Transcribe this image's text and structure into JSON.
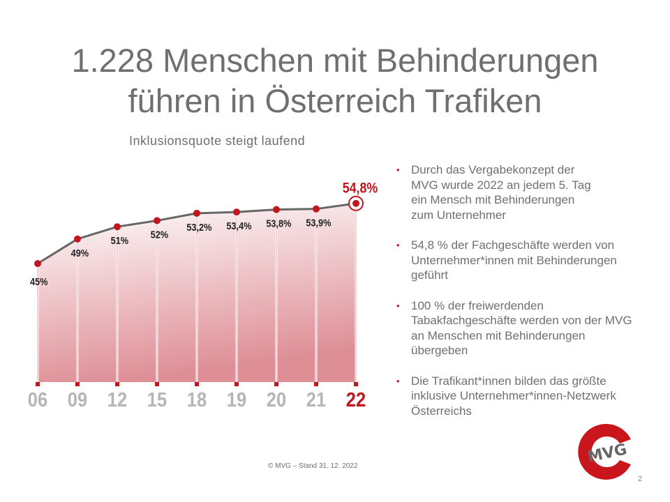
{
  "title": [
    "1.228 Menschen mit Behinderungen",
    "führen in Österreich Trafiken"
  ],
  "subtitle": "Inklusionsquote steigt laufend",
  "chart_data": {
    "type": "area",
    "title": "Inklusionsquote steigt laufend",
    "categories": [
      "06",
      "09",
      "12",
      "15",
      "18",
      "19",
      "20",
      "21",
      "22"
    ],
    "values": [
      45,
      49,
      51,
      52,
      53.2,
      53.4,
      53.8,
      53.9,
      54.8
    ],
    "labels": [
      "45%",
      "49%",
      "51%",
      "52%",
      "53,2%",
      "53,4%",
      "53,8%",
      "53,9%",
      "54,8%"
    ],
    "ylabel": "",
    "xlabel": "",
    "highlight_index": 8,
    "grid": false,
    "colors": {
      "line": "#666666",
      "point": "#c0161d",
      "fill": "#d9828a",
      "axis_label": "#b5b5b5",
      "highlight": "#c0161d"
    }
  },
  "bullets": [
    "Durch das Vergabekonzept der MVG wurde 2022 an jedem 5. Tag ein Mensch mit Behinderungen zum Unternehmer",
    "54,8 % der Fachgeschäfte werden von Unternehmer*innen mit Behinderungen geführt",
    "100 % der freiwerdenden Tabakfachgeschäfte werden von der MVG an Menschen mit Behinderungen übergeben",
    "Die Trafikant*innen bilden das größte inklusive Unternehmer*innen-Netzwerk Österreichs"
  ],
  "bullet_symbol": "•",
  "footer": "© MVG – Stand 31. 12. 2022",
  "page_number": "2",
  "logo_text": "MVG"
}
